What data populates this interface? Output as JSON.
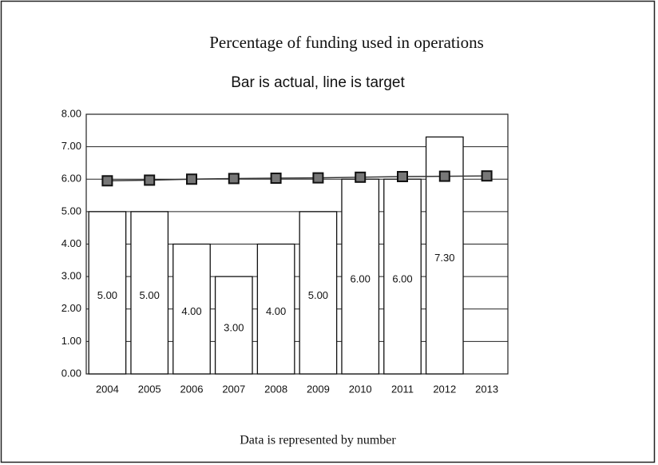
{
  "chart_data": {
    "type": "bar",
    "title": "Percentage of funding used in operations",
    "subtitle": "Bar is actual, line is target",
    "footer": "Data is represented by number",
    "categories": [
      "2004",
      "2005",
      "2006",
      "2007",
      "2008",
      "2009",
      "2010",
      "2011",
      "2012",
      "2013"
    ],
    "series": [
      {
        "type": "bar",
        "color": "#ffffff",
        "values": [
          5,
          5,
          4,
          3,
          4,
          5,
          6,
          6,
          7.3,
          null
        ],
        "value_labels": [
          "5.00",
          "5.00",
          "4.00",
          "3.00",
          "4.00",
          "5.00",
          "6.00",
          "6.00",
          "7.30",
          null
        ]
      },
      {
        "type": "line",
        "color": "#333333",
        "values": [
          5.95,
          5.97,
          6.0,
          6.02,
          6.03,
          6.04,
          6.06,
          6.08,
          6.09,
          6.1
        ]
      }
    ],
    "ylim": [
      0,
      8
    ],
    "yticks": [
      {
        "value": 0,
        "label": "0.00"
      },
      {
        "value": 1,
        "label": "1.00"
      },
      {
        "value": 2,
        "label": "2.00"
      },
      {
        "value": 3,
        "label": "3.00"
      },
      {
        "value": 4,
        "label": "4.00"
      },
      {
        "value": 5,
        "label": "5.00"
      },
      {
        "value": 6,
        "label": "6.00"
      },
      {
        "value": 7,
        "label": "7.00"
      },
      {
        "value": 8,
        "label": "8.00"
      }
    ],
    "grid": true
  }
}
